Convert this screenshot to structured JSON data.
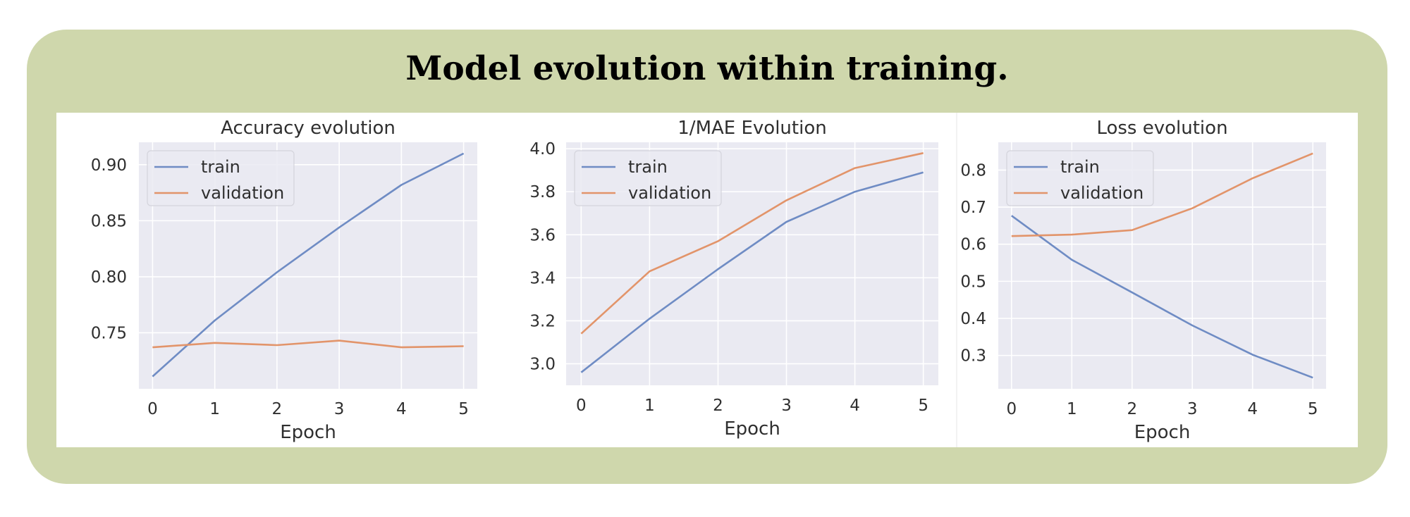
{
  "figure": {
    "title": "Model evolution within training."
  },
  "colors": {
    "card_background": "#cfd7ac",
    "plot_background": "#eaeaf2",
    "grid": "#ffffff",
    "train": "#6f8cc4",
    "validation": "#e2946a"
  },
  "chart_data": [
    {
      "type": "line",
      "title": "Accuracy evolution",
      "xlabel": "Epoch",
      "ylabel": "",
      "x": [
        0,
        1,
        2,
        3,
        4,
        5
      ],
      "xticks": [
        "0",
        "1",
        "2",
        "3",
        "4",
        "5"
      ],
      "yticks": [
        "0.75",
        "0.80",
        "0.85",
        "0.90"
      ],
      "ylim": [
        0.7,
        0.92
      ],
      "xlim": [
        -0.22,
        5.22
      ],
      "grid": true,
      "legend": "top-left",
      "series": [
        {
          "name": "train",
          "values": [
            0.711,
            0.761,
            0.804,
            0.844,
            0.882,
            0.91
          ]
        },
        {
          "name": "validation",
          "values": [
            0.737,
            0.741,
            0.739,
            0.743,
            0.737,
            0.738
          ]
        }
      ]
    },
    {
      "type": "line",
      "title": "1/MAE Evolution",
      "xlabel": "Epoch",
      "ylabel": "",
      "x": [
        0,
        1,
        2,
        3,
        4,
        5
      ],
      "xticks": [
        "0",
        "1",
        "2",
        "3",
        "4",
        "5"
      ],
      "yticks": [
        "3.0",
        "3.2",
        "3.4",
        "3.6",
        "3.8",
        "4.0"
      ],
      "ylim": [
        2.9,
        4.03
      ],
      "xlim": [
        -0.22,
        5.22
      ],
      "grid": true,
      "legend": "top-left",
      "series": [
        {
          "name": "train",
          "values": [
            2.96,
            3.21,
            3.44,
            3.66,
            3.8,
            3.89
          ]
        },
        {
          "name": "validation",
          "values": [
            3.14,
            3.43,
            3.57,
            3.76,
            3.91,
            3.98
          ]
        }
      ]
    },
    {
      "type": "line",
      "title": "Loss evolution",
      "xlabel": "Epoch",
      "ylabel": "",
      "x": [
        0,
        1,
        2,
        3,
        4,
        5
      ],
      "xticks": [
        "0",
        "1",
        "2",
        "3",
        "4",
        "5"
      ],
      "yticks": [
        "0.3",
        "0.4",
        "0.5",
        "0.6",
        "0.7",
        "0.8"
      ],
      "ylim": [
        0.21,
        0.875
      ],
      "xlim": [
        -0.22,
        5.22
      ],
      "grid": true,
      "legend": "top-left",
      "series": [
        {
          "name": "train",
          "values": [
            0.677,
            0.558,
            0.47,
            0.381,
            0.302,
            0.24
          ]
        },
        {
          "name": "validation",
          "values": [
            0.622,
            0.626,
            0.638,
            0.697,
            0.778,
            0.845
          ]
        }
      ]
    }
  ]
}
